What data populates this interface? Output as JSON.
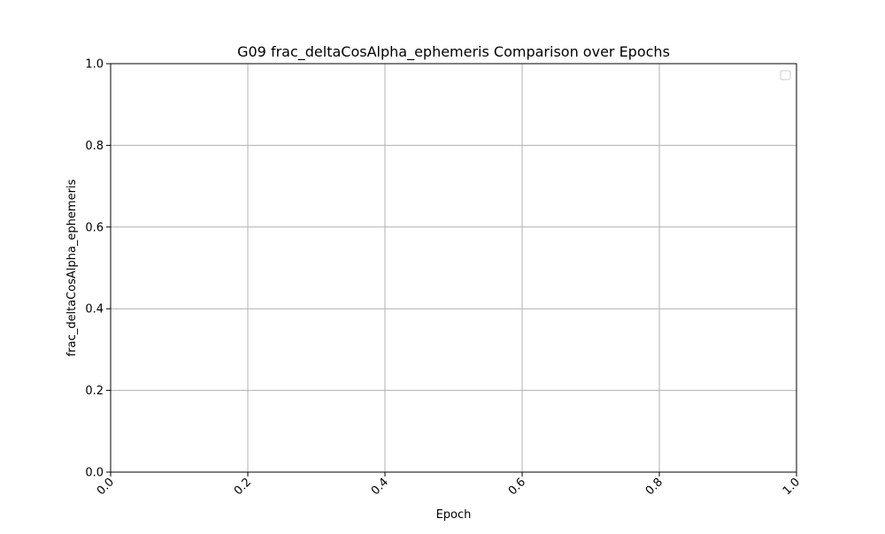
{
  "chart_data": {
    "type": "line",
    "title": "G09 frac_deltaCosAlpha_ephemeris Comparison over Epochs",
    "xlabel": "Epoch",
    "ylabel": "frac_deltaCosAlpha_ephemeris",
    "xlim": [
      0.0,
      1.0
    ],
    "ylim": [
      0.0,
      1.0
    ],
    "x_ticks": [
      "0.0",
      "0.2",
      "0.4",
      "0.6",
      "0.8",
      "1.0"
    ],
    "y_ticks": [
      "0.0",
      "0.2",
      "0.4",
      "0.6",
      "0.8",
      "1.0"
    ],
    "x_tick_rotation": "45deg",
    "grid": true,
    "legend": {
      "placement": "upper-right",
      "entries": []
    },
    "series": [],
    "colors": {
      "grid": "#b0b0b0",
      "axis": "#000000",
      "background": "#ffffff",
      "legend_border": "#cccccc"
    }
  }
}
